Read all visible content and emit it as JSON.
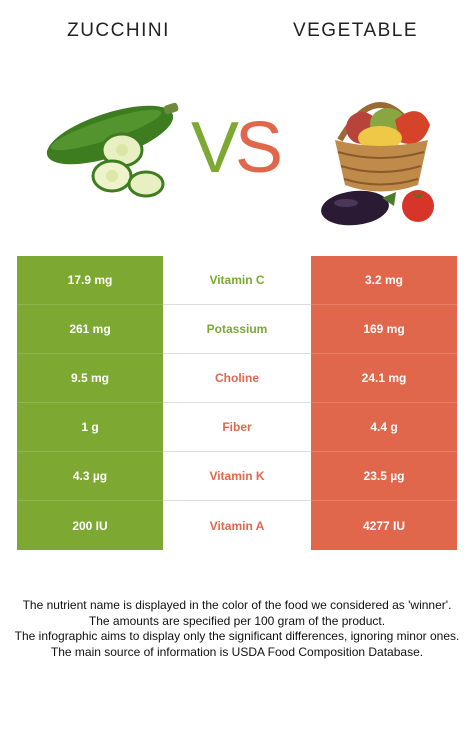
{
  "header": {
    "left_title": "ZUCCHINI",
    "right_title": "VEGETABLE",
    "vs_v": "V",
    "vs_s": "S"
  },
  "colors": {
    "left_winner": "#7da832",
    "right_winner": "#e0674c"
  },
  "comparison": {
    "rows": [
      {
        "nutrient": "Vitamin C",
        "left": "17.9 mg",
        "right": "3.2 mg",
        "winner": "left"
      },
      {
        "nutrient": "Potassium",
        "left": "261 mg",
        "right": "169 mg",
        "winner": "left"
      },
      {
        "nutrient": "Choline",
        "left": "9.5 mg",
        "right": "24.1 mg",
        "winner": "right"
      },
      {
        "nutrient": "Fiber",
        "left": "1 g",
        "right": "4.4 g",
        "winner": "right"
      },
      {
        "nutrient": "Vitamin K",
        "left": "4.3 µg",
        "right": "23.5 µg",
        "winner": "right"
      },
      {
        "nutrient": "Vitamin A",
        "left": "200 IU",
        "right": "4277 IU",
        "winner": "right"
      }
    ]
  },
  "footer": {
    "line1": "The nutrient name is displayed in the color of the food we considered as 'winner'.",
    "line2": "The amounts are specified per 100 gram of the product.",
    "line3": "The infographic aims to display only the significant differences, ignoring minor ones.",
    "line4": "The main source of information is USDA Food Composition Database."
  }
}
